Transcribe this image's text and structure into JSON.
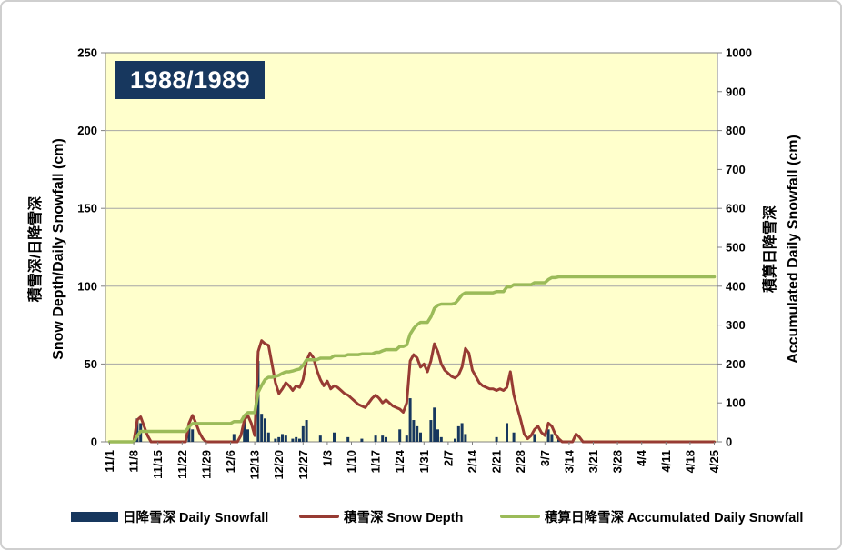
{
  "chart_data": {
    "type": "bar",
    "title": "1988/1989",
    "left_axis": {
      "label_ja": "積雪深/日降雪深",
      "label_en": "Snow Depth/Daily Snowfall (cm)",
      "min": 0,
      "max": 250,
      "tick_step": 50,
      "ticks": [
        0,
        50,
        100,
        150,
        200,
        250
      ]
    },
    "right_axis": {
      "label_ja": "積算日降雪深",
      "label_en": "Accumulated Daily Snowfall (cm)",
      "min": 0,
      "max": 1000,
      "tick_step": 100,
      "ticks": [
        0,
        100,
        200,
        300,
        400,
        500,
        600,
        700,
        800,
        900,
        1000
      ]
    },
    "x_axis": {
      "tick_labels": [
        "11/1",
        "11/8",
        "11/15",
        "11/22",
        "11/29",
        "12/6",
        "12/13",
        "12/20",
        "12/27",
        "1/3",
        "1/10",
        "1/17",
        "1/24",
        "1/31",
        "2/7",
        "2/14",
        "2/21",
        "2/28",
        "3/7",
        "3/14",
        "3/21",
        "3/28",
        "4/4",
        "4/11",
        "4/18",
        "4/25"
      ],
      "tick_interval_days": 7
    },
    "days": [
      "11/1",
      "11/2",
      "11/3",
      "11/4",
      "11/5",
      "11/6",
      "11/7",
      "11/8",
      "11/9",
      "11/10",
      "11/11",
      "11/12",
      "11/13",
      "11/14",
      "11/15",
      "11/16",
      "11/17",
      "11/18",
      "11/19",
      "11/20",
      "11/21",
      "11/22",
      "11/23",
      "11/24",
      "11/25",
      "11/26",
      "11/27",
      "11/28",
      "11/29",
      "11/30",
      "12/1",
      "12/2",
      "12/3",
      "12/4",
      "12/5",
      "12/6",
      "12/7",
      "12/8",
      "12/9",
      "12/10",
      "12/11",
      "12/12",
      "12/13",
      "12/14",
      "12/15",
      "12/16",
      "12/17",
      "12/18",
      "12/19",
      "12/20",
      "12/21",
      "12/22",
      "12/23",
      "12/24",
      "12/25",
      "12/26",
      "12/27",
      "12/28",
      "12/29",
      "12/30",
      "12/31",
      "1/1",
      "1/2",
      "1/3",
      "1/4",
      "1/5",
      "1/6",
      "1/7",
      "1/8",
      "1/9",
      "1/10",
      "1/11",
      "1/12",
      "1/13",
      "1/14",
      "1/15",
      "1/16",
      "1/17",
      "1/18",
      "1/19",
      "1/20",
      "1/21",
      "1/22",
      "1/23",
      "1/24",
      "1/25",
      "1/26",
      "1/27",
      "1/28",
      "1/29",
      "1/30",
      "1/31",
      "2/1",
      "2/2",
      "2/3",
      "2/4",
      "2/5",
      "2/6",
      "2/7",
      "2/8",
      "2/9",
      "2/10",
      "2/11",
      "2/12",
      "2/13",
      "2/14",
      "2/15",
      "2/16",
      "2/17",
      "2/18",
      "2/19",
      "2/20",
      "2/21",
      "2/22",
      "2/23",
      "2/24",
      "2/25",
      "2/26",
      "2/27",
      "2/28",
      "3/1",
      "3/2",
      "3/3",
      "3/4",
      "3/5",
      "3/6",
      "3/7",
      "3/8",
      "3/9",
      "3/10",
      "3/11",
      "3/12",
      "3/13",
      "3/14",
      "3/15",
      "3/16",
      "3/17",
      "3/18",
      "3/19",
      "3/20",
      "3/21",
      "3/22",
      "3/23",
      "3/24",
      "3/25",
      "3/26",
      "3/27",
      "3/28",
      "3/29",
      "3/30",
      "3/31",
      "4/1",
      "4/2",
      "4/3",
      "4/4",
      "4/5",
      "4/6",
      "4/7",
      "4/8",
      "4/9",
      "4/10",
      "4/11",
      "4/12",
      "4/13",
      "4/14",
      "4/15",
      "4/16",
      "4/17",
      "4/18",
      "4/19",
      "4/20",
      "4/21",
      "4/22",
      "4/23",
      "4/24",
      "4/25"
    ],
    "series": [
      {
        "name": "日降雪深 Daily Snowfall",
        "type": "bar",
        "axis": "left",
        "color": "#17375E",
        "values": [
          0,
          0,
          0,
          0,
          0,
          0,
          0,
          0,
          15,
          12,
          0,
          0,
          0,
          0,
          0,
          0,
          0,
          0,
          0,
          0,
          0,
          0,
          0,
          12,
          8,
          0,
          0,
          0,
          0,
          0,
          0,
          0,
          0,
          0,
          0,
          0,
          5,
          0,
          0,
          15,
          8,
          0,
          0,
          52,
          18,
          15,
          6,
          0,
          2,
          3,
          5,
          4,
          0,
          2,
          3,
          2,
          10,
          14,
          0,
          0,
          0,
          4,
          0,
          0,
          0,
          6,
          0,
          0,
          0,
          3,
          0,
          0,
          0,
          2,
          0,
          0,
          0,
          4,
          0,
          4,
          3,
          0,
          0,
          0,
          8,
          0,
          4,
          28,
          14,
          10,
          6,
          0,
          0,
          14,
          22,
          8,
          3,
          0,
          0,
          0,
          2,
          10,
          12,
          5,
          0,
          0,
          0,
          0,
          0,
          0,
          0,
          0,
          3,
          0,
          0,
          12,
          0,
          6,
          0,
          0,
          0,
          0,
          0,
          5,
          0,
          0,
          0,
          8,
          5,
          0,
          2,
          0,
          0,
          0,
          0,
          0,
          0,
          0,
          0,
          0,
          0,
          0,
          0,
          0,
          0,
          0,
          0,
          0,
          0,
          0,
          0,
          0,
          0,
          0,
          0,
          0,
          0,
          0,
          0,
          0,
          0,
          0,
          0,
          0,
          0,
          0,
          0,
          0,
          0,
          0,
          0,
          0,
          0,
          0,
          0,
          0
        ]
      },
      {
        "name": "積雪深 Snow Depth",
        "type": "line",
        "axis": "left",
        "color": "#973B33",
        "values": [
          0,
          0,
          0,
          0,
          0,
          0,
          0,
          0,
          14,
          16,
          10,
          4,
          0,
          0,
          0,
          0,
          0,
          0,
          0,
          0,
          0,
          0,
          0,
          12,
          17,
          12,
          6,
          2,
          0,
          0,
          0,
          0,
          0,
          0,
          0,
          0,
          0,
          0,
          4,
          14,
          17,
          12,
          4,
          58,
          65,
          63,
          62,
          50,
          38,
          31,
          34,
          38,
          36,
          33,
          36,
          35,
          40,
          52,
          57,
          54,
          46,
          40,
          36,
          39,
          34,
          36,
          35,
          33,
          31,
          30,
          28,
          26,
          24,
          23,
          22,
          25,
          28,
          30,
          28,
          25,
          27,
          25,
          23,
          22,
          21,
          19,
          25,
          52,
          56,
          54,
          48,
          50,
          45,
          52,
          63,
          58,
          50,
          46,
          44,
          42,
          41,
          43,
          48,
          60,
          57,
          46,
          42,
          38,
          36,
          35,
          34,
          34,
          33,
          34,
          33,
          35,
          45,
          30,
          22,
          14,
          5,
          2,
          4,
          8,
          10,
          6,
          4,
          12,
          10,
          5,
          2,
          0,
          0,
          0,
          0,
          5,
          3,
          0,
          0,
          0,
          0,
          0,
          0,
          0,
          0,
          0,
          0,
          0,
          0,
          0,
          0,
          0,
          0,
          0,
          0,
          0,
          0,
          0,
          0,
          0,
          0,
          0,
          0,
          0,
          0,
          0,
          0,
          0,
          0,
          0,
          0,
          0,
          0,
          0,
          0,
          0
        ]
      },
      {
        "name": "積算日降雪深 Accumulated Daily Snowfall",
        "type": "line",
        "axis": "right",
        "color": "#9BBB59",
        "derived": "cumulative_sum_of_daily_snowfall",
        "final_value": 424
      }
    ],
    "colors": {
      "plot_bg": "#FFFFCC",
      "grid": "#A6A6A6",
      "axis": "#808080",
      "bar": "#17375E",
      "depth_line": "#973B33",
      "accum_line": "#9BBB59",
      "title_bg": "#17375E",
      "title_fg": "#FFFFFF"
    }
  },
  "legend": {
    "items": [
      {
        "label": "日降雪深 Daily Snowfall",
        "swatch": "bar",
        "color": "#17375E"
      },
      {
        "label": "積雪深 Snow Depth",
        "swatch": "line",
        "color": "#973B33"
      },
      {
        "label": "積算日降雪深 Accumulated Daily Snowfall",
        "swatch": "line",
        "color": "#9BBB59"
      }
    ]
  }
}
